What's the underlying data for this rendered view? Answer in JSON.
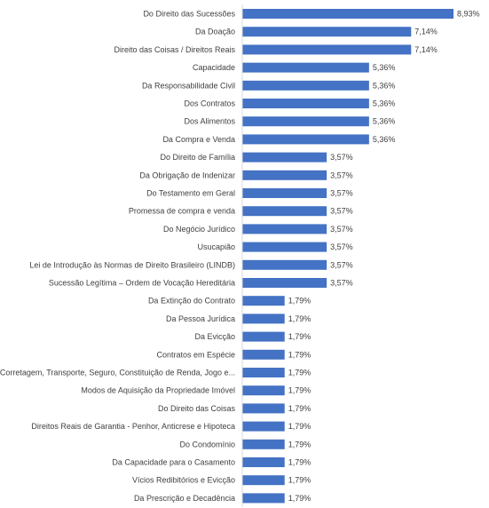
{
  "chart_data": {
    "type": "bar",
    "orientation": "horizontal",
    "title": "",
    "xlabel": "",
    "ylabel": "",
    "grid": false,
    "legend": "none",
    "bar_color": "#4472C4",
    "label_color": "#404040",
    "xlim": [
      0,
      8.93
    ],
    "categories": [
      "Do Direito das Sucessões",
      "Da Doação",
      "Direito das Coisas / Direitos Reais",
      "Capacidade",
      "Da Responsabilidade Civil",
      "Dos Contratos",
      "Dos Alimentos",
      "Da Compra e Venda",
      "Do Direito de Família",
      "Da Obrigação de Indenizar",
      "Do Testamento em Geral",
      "Promessa de compra e venda",
      "Do Negócio Jurídico",
      "Usucapião",
      "Lei de Introdução às Normas de Direito Brasileiro (LINDB)",
      "Sucessão Legítima – Ordem de Vocação Hereditária",
      "Da Extinção do Contrato",
      "Da Pessoa Jurídica",
      "Da Evicção",
      "Contratos em Espécie",
      "Corretagem, Transporte, Seguro, Constituição de Renda, Jogo e...",
      "Modos de Aquisição da Propriedade Imóvel",
      "Do Direito das Coisas",
      "Direitos Reais de Garantia - Penhor, Anticrese e Hipoteca",
      "Do Condomínio",
      "Da Capacidade para o Casamento",
      "Vícios Redibitórios e Evicção",
      "Da Prescrição e Decadência"
    ],
    "values": [
      8.93,
      7.14,
      7.14,
      5.36,
      5.36,
      5.36,
      5.36,
      5.36,
      3.57,
      3.57,
      3.57,
      3.57,
      3.57,
      3.57,
      3.57,
      3.57,
      1.79,
      1.79,
      1.79,
      1.79,
      1.79,
      1.79,
      1.79,
      1.79,
      1.79,
      1.79,
      1.79,
      1.79
    ],
    "value_labels": [
      "8,93%",
      "7,14%",
      "7,14%",
      "5,36%",
      "5,36%",
      "5,36%",
      "5,36%",
      "5,36%",
      "3,57%",
      "3,57%",
      "3,57%",
      "3,57%",
      "3,57%",
      "3,57%",
      "3,57%",
      "3,57%",
      "1,79%",
      "1,79%",
      "1,79%",
      "1,79%",
      "1,79%",
      "1,79%",
      "1,79%",
      "1,79%",
      "1,79%",
      "1,79%",
      "1,79%",
      "1,79%"
    ]
  }
}
